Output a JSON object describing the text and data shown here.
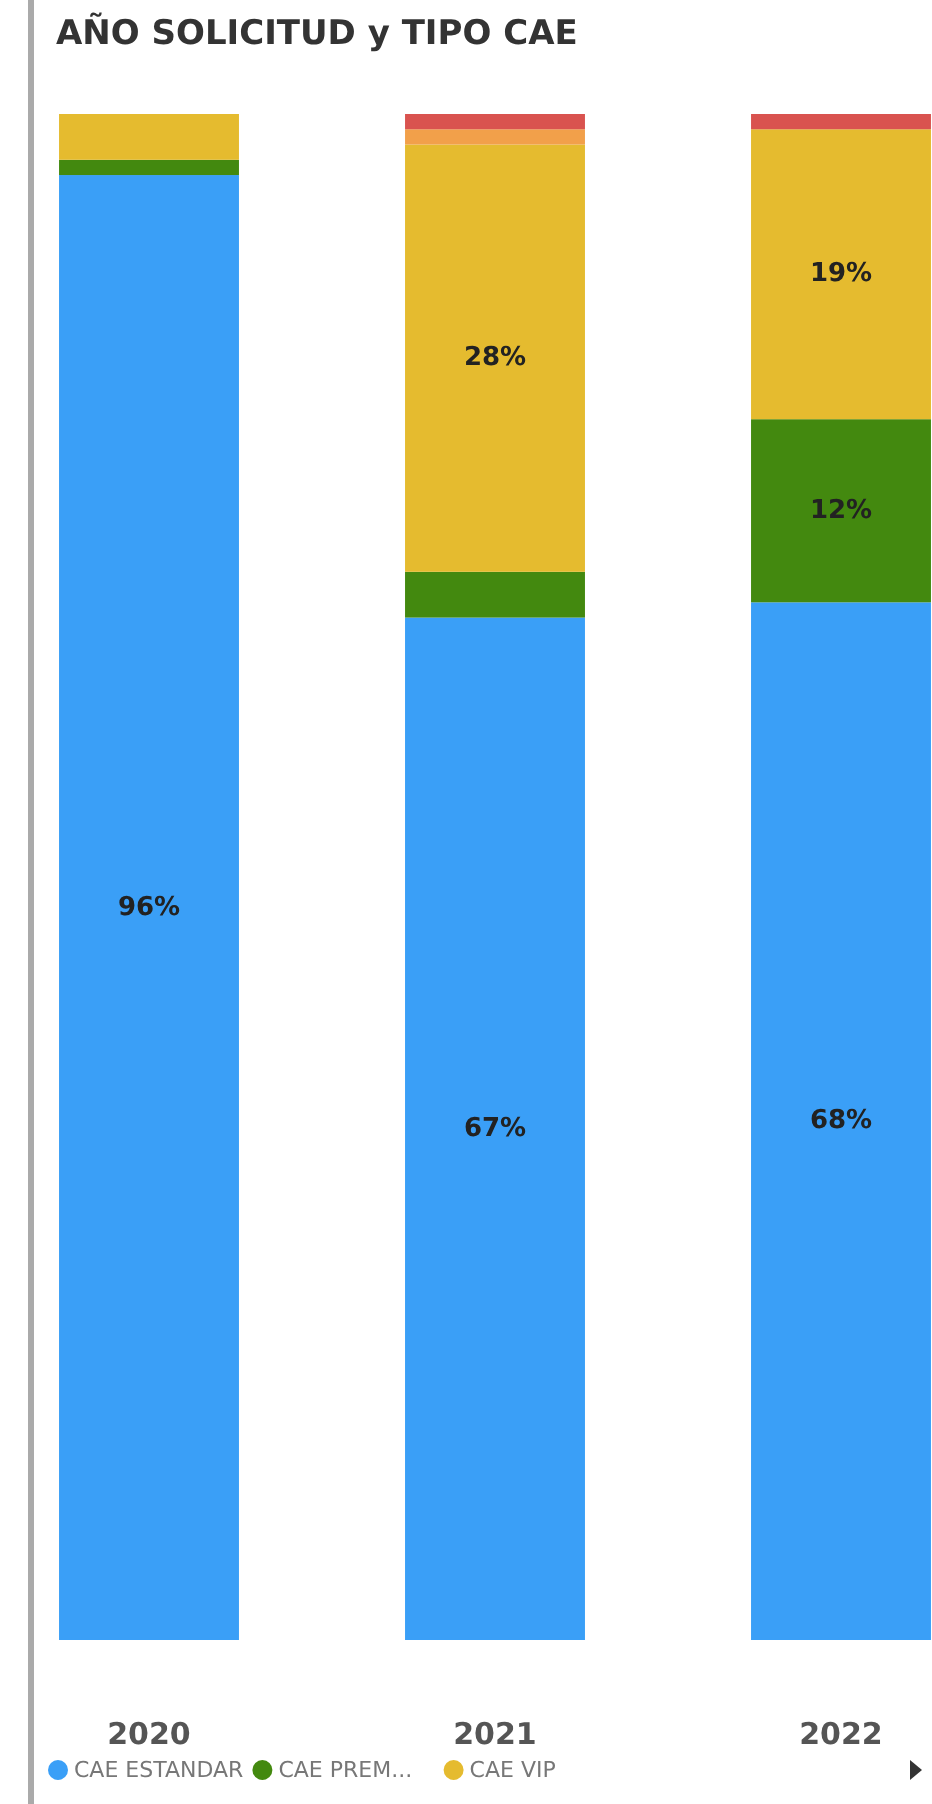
{
  "chart_data": {
    "type": "bar",
    "stacked": true,
    "title": "AÑO SOLICITUD y TIPO CAE",
    "categories": [
      "2020",
      "2021",
      "2022"
    ],
    "legend": "bottom left",
    "series": [
      {
        "name": "CAE ESTANDAR",
        "color": "#3a9ff7",
        "values": [
          96,
          67,
          68
        ],
        "value_labels": [
          "96%",
          "67%",
          "68%"
        ]
      },
      {
        "name": "CAE PREM...",
        "color": "#43890f",
        "values": [
          1,
          3,
          12
        ],
        "value_labels": [
          null,
          null,
          "12%"
        ]
      },
      {
        "name": "CAE VIP",
        "color": "#e5bb2f",
        "values": [
          3,
          28,
          19
        ],
        "value_labels": [
          null,
          "28%",
          "19%"
        ]
      },
      {
        "color": "#f2a04a",
        "values": [
          null,
          1,
          null
        ]
      },
      {
        "color": "#d9534f",
        "values": [
          null,
          1,
          1
        ]
      }
    ]
  }
}
